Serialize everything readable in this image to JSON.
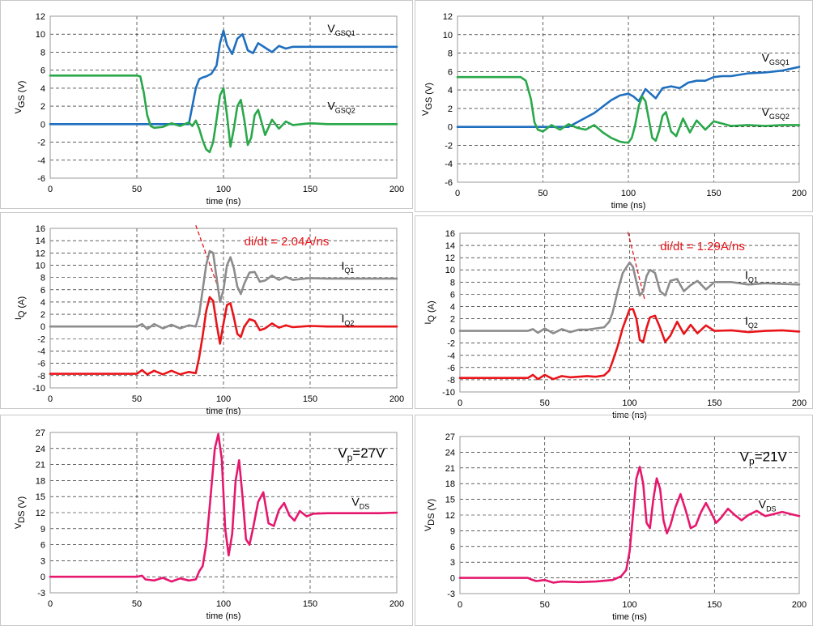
{
  "chart_data": [
    {
      "type": "line",
      "xlabel": "time (ns)",
      "ylabel": "V_GS (V)",
      "xlim": [
        0,
        200
      ],
      "ylim": [
        -6,
        12
      ],
      "xticks": [
        "0",
        "50",
        "100",
        "150",
        "200"
      ],
      "yticks": [
        "-6",
        "-4",
        "-2",
        "0",
        "2",
        "4",
        "6",
        "8",
        "10",
        "12"
      ],
      "grid": true,
      "series": [
        {
          "name": "V_GSQ1",
          "color": "#1f6fbf",
          "x": [
            0,
            50,
            80,
            82,
            84,
            86,
            88,
            90,
            93,
            96,
            98,
            100,
            102,
            105,
            108,
            111,
            114,
            117,
            120,
            124,
            128,
            132,
            136,
            140,
            150,
            160,
            170,
            180,
            200
          ],
          "y": [
            0,
            0,
            0,
            2,
            4,
            5,
            5.2,
            5.3,
            5.6,
            6.5,
            9.0,
            10.4,
            8.8,
            7.8,
            9.5,
            10.0,
            8.2,
            7.9,
            9.0,
            8.5,
            8.0,
            8.7,
            8.4,
            8.6,
            8.6,
            8.6,
            8.6,
            8.6,
            8.6
          ]
        },
        {
          "name": "V_GSQ2",
          "color": "#2aa84a",
          "x": [
            0,
            50,
            52,
            54,
            56,
            58,
            60,
            65,
            70,
            75,
            80,
            82,
            84,
            86,
            88,
            90,
            92,
            94,
            96,
            98,
            100,
            102,
            104,
            106,
            108,
            110,
            112,
            114,
            116,
            118,
            120,
            124,
            128,
            132,
            136,
            140,
            150,
            160,
            170,
            180,
            200
          ],
          "y": [
            5.4,
            5.4,
            5.3,
            3.5,
            1.0,
            -0.2,
            -0.4,
            -0.3,
            0.1,
            -0.2,
            0.2,
            -0.2,
            0.4,
            -0.5,
            -1.8,
            -2.8,
            -3.1,
            -2.0,
            0.5,
            3.2,
            4.0,
            1.0,
            -2.5,
            -0.5,
            2.0,
            2.7,
            0.5,
            -2.3,
            -1.5,
            1.0,
            1.6,
            -1.2,
            0.5,
            -0.5,
            0.3,
            -0.1,
            0.1,
            0.0,
            0.0,
            0.0,
            0.0
          ]
        }
      ]
    },
    {
      "type": "line",
      "xlabel": "time (ns)",
      "ylabel": "V_GS (V)",
      "xlim": [
        0,
        200
      ],
      "ylim": [
        -6,
        12
      ],
      "xticks": [
        "0",
        "50",
        "100",
        "150",
        "200"
      ],
      "yticks": [
        "-6",
        "-4",
        "-2",
        "0",
        "2",
        "4",
        "6",
        "8",
        "10",
        "12"
      ],
      "grid": true,
      "series": [
        {
          "name": "V_GSQ1",
          "color": "#1f6fbf",
          "x": [
            0,
            60,
            65,
            70,
            80,
            90,
            95,
            100,
            103,
            106,
            108,
            110,
            113,
            116,
            120,
            125,
            130,
            135,
            140,
            145,
            150,
            155,
            160,
            170,
            180,
            190,
            200
          ],
          "y": [
            0,
            0,
            0,
            0.5,
            1.5,
            2.9,
            3.4,
            3.6,
            3.3,
            2.8,
            3.4,
            4.1,
            3.6,
            3.1,
            4.2,
            4.4,
            4.2,
            4.8,
            5.0,
            5.0,
            5.4,
            5.5,
            5.5,
            5.8,
            5.9,
            6.1,
            6.5
          ]
        },
        {
          "name": "V_GSQ2",
          "color": "#2aa84a",
          "x": [
            0,
            37,
            40,
            43,
            45,
            47,
            50,
            55,
            60,
            65,
            70,
            75,
            80,
            85,
            90,
            95,
            98,
            100,
            102,
            104,
            106,
            108,
            110,
            112,
            114,
            116,
            118,
            120,
            122,
            125,
            128,
            132,
            136,
            140,
            145,
            150,
            160,
            170,
            180,
            190,
            200
          ],
          "y": [
            5.4,
            5.4,
            5.0,
            3.0,
            0.5,
            -0.3,
            -0.5,
            0.2,
            -0.3,
            0.3,
            -0.1,
            -0.3,
            0.2,
            -0.6,
            -1.2,
            -1.6,
            -1.7,
            -1.7,
            -1.2,
            0.2,
            2.2,
            3.3,
            2.8,
            0.8,
            -1.2,
            -1.5,
            -0.4,
            1.2,
            1.6,
            -0.5,
            -1.0,
            0.9,
            -0.6,
            0.7,
            -0.3,
            0.6,
            0.1,
            0.2,
            0.1,
            0.2,
            0.2
          ]
        }
      ]
    },
    {
      "type": "line",
      "xlabel": "time (ns)",
      "ylabel": "I_Q (A)",
      "xlim": [
        0,
        200
      ],
      "ylim": [
        -10,
        16
      ],
      "xticks": [
        "0",
        "50",
        "100",
        "150",
        "200"
      ],
      "yticks": [
        "-10",
        "-8",
        "-6",
        "-4",
        "-2",
        "0",
        "2",
        "4",
        "6",
        "8",
        "10",
        "12",
        "14",
        "16"
      ],
      "grid": true,
      "annotation": "di/dt = 2.04A/ns",
      "series": [
        {
          "name": "I_Q1",
          "color": "#8c8c8c",
          "x": [
            0,
            50,
            53,
            56,
            60,
            65,
            70,
            75,
            80,
            84,
            86,
            88,
            90,
            92,
            94,
            96,
            98,
            100,
            102,
            104,
            106,
            108,
            110,
            112,
            115,
            118,
            121,
            124,
            128,
            132,
            136,
            140,
            150,
            160,
            170,
            180,
            200
          ],
          "y": [
            0,
            0,
            0.4,
            -0.4,
            0.4,
            -0.3,
            0.3,
            -0.3,
            0.2,
            0,
            2,
            6,
            10,
            12.3,
            12.0,
            8,
            4,
            6,
            10,
            11.3,
            9.5,
            6.5,
            5.3,
            7,
            8.8,
            8.9,
            7.3,
            7.5,
            8.3,
            7.6,
            8.1,
            7.6,
            7.9,
            7.8,
            7.8,
            7.8,
            7.8
          ]
        },
        {
          "name": "I_Q2",
          "color": "#e8141a",
          "x": [
            0,
            50,
            53,
            56,
            60,
            65,
            70,
            75,
            80,
            84,
            86,
            88,
            90,
            92,
            94,
            96,
            98,
            100,
            102,
            104,
            106,
            108,
            110,
            112,
            115,
            118,
            121,
            124,
            128,
            132,
            136,
            140,
            150,
            160,
            170,
            180,
            200
          ],
          "y": [
            -7.7,
            -7.7,
            -7.1,
            -7.8,
            -7.2,
            -7.8,
            -7.2,
            -7.8,
            -7.4,
            -7.6,
            -5,
            -1.5,
            2.5,
            4.8,
            4.2,
            0.5,
            -2.8,
            0.5,
            3.5,
            3.8,
            1.5,
            -1.2,
            -1.7,
            0,
            1.2,
            0.9,
            -0.6,
            -0.3,
            0.5,
            -0.2,
            0.2,
            -0.1,
            0.1,
            0.0,
            0.0,
            0.0,
            0.0
          ]
        }
      ]
    },
    {
      "type": "line",
      "xlabel": "time (ns)",
      "ylabel": "I_Q (A)",
      "xlim": [
        0,
        200
      ],
      "ylim": [
        -10,
        16
      ],
      "xticks": [
        "0",
        "50",
        "100",
        "150",
        "200"
      ],
      "yticks": [
        "-10",
        "-8",
        "-6",
        "-4",
        "-2",
        "0",
        "2",
        "4",
        "6",
        "8",
        "10",
        "12",
        "14",
        "16"
      ],
      "grid": true,
      "annotation": "di/dt = 1.29A/ns",
      "series": [
        {
          "name": "I_Q1",
          "color": "#8c8c8c",
          "x": [
            0,
            40,
            43,
            46,
            50,
            55,
            60,
            65,
            70,
            75,
            80,
            85,
            88,
            90,
            93,
            96,
            100,
            102,
            104,
            106,
            108,
            110,
            112,
            115,
            118,
            121,
            124,
            128,
            132,
            136,
            140,
            145,
            150,
            160,
            170,
            180,
            190,
            200
          ],
          "y": [
            0,
            0,
            0.3,
            -0.3,
            0.4,
            -0.4,
            0.3,
            -0.2,
            0.2,
            0.2,
            0.4,
            0.6,
            1.5,
            3,
            6.5,
            9.5,
            11.2,
            10.5,
            8,
            5.8,
            6.5,
            9,
            10,
            9.5,
            6.5,
            5.8,
            8.2,
            8.5,
            6.5,
            7.5,
            8.2,
            6.8,
            8.0,
            8.0,
            7.6,
            7.8,
            7.7,
            7.6
          ]
        },
        {
          "name": "I_Q2",
          "color": "#e8141a",
          "x": [
            0,
            40,
            43,
            46,
            50,
            55,
            60,
            65,
            70,
            75,
            80,
            85,
            88,
            90,
            93,
            96,
            100,
            102,
            104,
            106,
            108,
            110,
            112,
            115,
            118,
            121,
            124,
            128,
            132,
            136,
            140,
            145,
            150,
            160,
            170,
            180,
            190,
            200
          ],
          "y": [
            -7.7,
            -7.7,
            -7.2,
            -7.9,
            -7.2,
            -7.9,
            -7.4,
            -7.6,
            -7.5,
            -7.4,
            -7.5,
            -7.3,
            -6.5,
            -5,
            -2.5,
            0.5,
            3.5,
            3.6,
            2,
            -1.5,
            -1.8,
            0.5,
            2.2,
            2.5,
            0.5,
            -1.8,
            -0.8,
            1.5,
            -0.5,
            1.0,
            -0.4,
            0.9,
            0.0,
            0.1,
            -0.2,
            0.0,
            0.1,
            -0.1
          ]
        }
      ]
    },
    {
      "type": "line",
      "xlabel": "time (ns)",
      "ylabel": "V_DS (V)",
      "xlim": [
        0,
        200
      ],
      "ylim": [
        -3,
        27
      ],
      "xticks": [
        "0",
        "50",
        "100",
        "150",
        "200"
      ],
      "yticks": [
        "-3",
        "0",
        "3",
        "6",
        "9",
        "12",
        "15",
        "18",
        "21",
        "24",
        "27"
      ],
      "grid": true,
      "annotation": "Vp=27V",
      "series": [
        {
          "name": "V_DS",
          "color": "#e6186e",
          "x": [
            0,
            50,
            53,
            55,
            60,
            65,
            70,
            75,
            80,
            84,
            86,
            88,
            90,
            92,
            95,
            97,
            99,
            101,
            103,
            105,
            107,
            109,
            111,
            113,
            115,
            117,
            120,
            123,
            126,
            129,
            132,
            135,
            138,
            141,
            144,
            148,
            152,
            160,
            170,
            180,
            190,
            200
          ],
          "y": [
            0,
            0,
            0.2,
            -0.5,
            -0.7,
            -0.2,
            -0.9,
            -0.3,
            -0.7,
            -0.5,
            1,
            2,
            6,
            13,
            24,
            26.7,
            22,
            9,
            4,
            8,
            18,
            21.8,
            15,
            7,
            6,
            9,
            14,
            15.8,
            10,
            9.5,
            12.5,
            13.8,
            11.5,
            10.5,
            12.3,
            11.3,
            11.8,
            11.9,
            11.9,
            11.9,
            11.9,
            12.0
          ]
        }
      ]
    },
    {
      "type": "line",
      "xlabel": "time (ns)",
      "ylabel": "V_DS (V)",
      "xlim": [
        0,
        200
      ],
      "ylim": [
        -3,
        27
      ],
      "xticks": [
        "0",
        "50",
        "100",
        "150",
        "200"
      ],
      "yticks": [
        "-3",
        "0",
        "3",
        "6",
        "9",
        "12",
        "15",
        "18",
        "21",
        "24",
        "27"
      ],
      "grid": true,
      "annotation": "Vp=21V",
      "series": [
        {
          "name": "V_DS",
          "color": "#e6186e",
          "x": [
            0,
            40,
            42,
            45,
            50,
            55,
            60,
            70,
            80,
            90,
            95,
            98,
            100,
            102,
            104,
            106,
            108,
            110,
            112,
            114,
            116,
            118,
            120,
            122,
            124,
            127,
            130,
            133,
            136,
            139,
            142,
            145,
            148,
            151,
            154,
            158,
            162,
            166,
            170,
            175,
            180,
            185,
            190,
            195,
            200
          ],
          "y": [
            0,
            0,
            -0.3,
            -0.6,
            -0.4,
            -0.9,
            -0.7,
            -0.8,
            -0.7,
            -0.4,
            0.3,
            1.5,
            5,
            12,
            19,
            21.2,
            18,
            10.5,
            9.5,
            15,
            19,
            17,
            11,
            8.5,
            10,
            13.5,
            16,
            13,
            9.5,
            10,
            12.5,
            14.3,
            12.5,
            10.5,
            11.5,
            13.2,
            12,
            11,
            12,
            12.8,
            11.8,
            12.2,
            12.6,
            12.2,
            11.8
          ]
        }
      ]
    }
  ]
}
